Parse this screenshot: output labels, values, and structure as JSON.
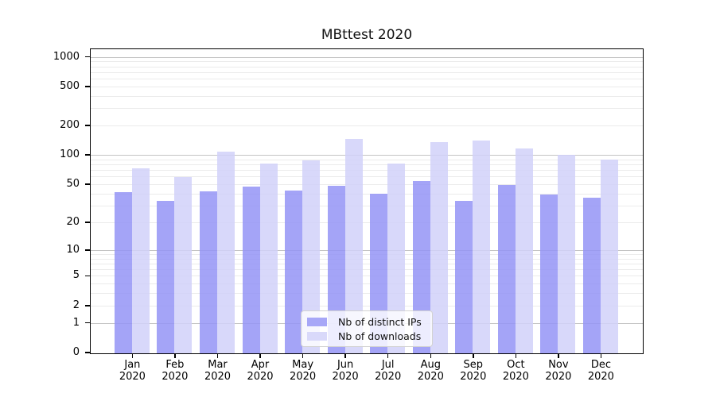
{
  "title": "MBttest 2020",
  "chart_data": {
    "type": "bar",
    "title": "MBttest 2020",
    "x_months": [
      "Jan",
      "Feb",
      "Mar",
      "Apr",
      "May",
      "Jun",
      "Jul",
      "Aug",
      "Sep",
      "Oct",
      "Nov",
      "Dec"
    ],
    "x_year": "2020",
    "series": [
      {
        "name": "Nb of distinct IPs",
        "slug": "distinct-ips",
        "fill": "rgba(148,148,246,0.85)",
        "swatch_color": "#a7a7f7",
        "values": [
          42,
          34,
          43,
          48,
          44,
          49,
          41,
          55,
          34,
          50,
          40,
          37
        ]
      },
      {
        "name": "Nb of downloads",
        "slug": "downloads",
        "fill": "rgba(209,209,249,0.85)",
        "swatch_color": "#d9d9fa",
        "values": [
          75,
          61,
          110,
          83,
          89,
          150,
          84,
          137,
          144,
          119,
          102,
          92
        ]
      }
    ],
    "y_scale": "log10(1+v)",
    "y_tick_values": [
      0,
      1,
      2,
      5,
      10,
      20,
      50,
      100,
      200,
      500,
      1000
    ],
    "y_major_gridlines": [
      1,
      10,
      100,
      1000
    ],
    "y_minor_gridlines": [
      2,
      3,
      4,
      5,
      6,
      7,
      8,
      9,
      20,
      30,
      40,
      50,
      60,
      70,
      80,
      90,
      200,
      300,
      400,
      500,
      600,
      700,
      800,
      900
    ],
    "ylim": [
      0,
      1230
    ],
    "grid": "horizontal",
    "legend_position": "lower center"
  }
}
